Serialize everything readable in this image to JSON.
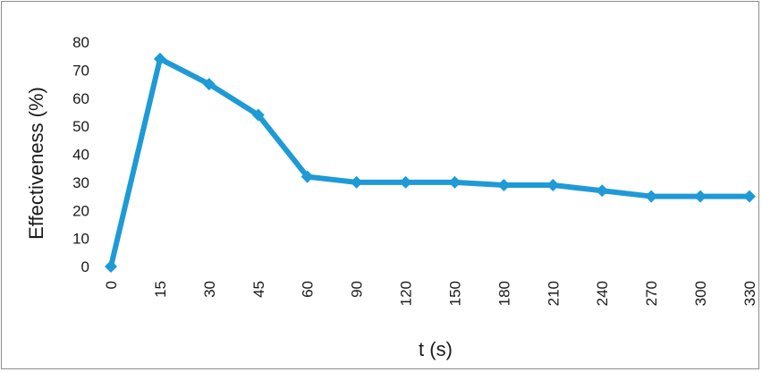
{
  "chart_data": {
    "type": "line",
    "title": "",
    "xlabel": "t (s)",
    "ylabel": "Effectiveness (%)",
    "categories": [
      "0",
      "15",
      "30",
      "45",
      "60",
      "90",
      "120",
      "150",
      "180",
      "210",
      "240",
      "270",
      "300",
      "330"
    ],
    "series": [
      {
        "values": [
          0,
          74,
          65,
          54,
          32,
          30,
          30,
          30,
          29,
          29,
          27,
          25,
          25,
          25
        ]
      }
    ],
    "y_ticks": [
      "0",
      "10",
      "20",
      "30",
      "40",
      "50",
      "60",
      "70",
      "80"
    ],
    "ylim": [
      0,
      80
    ],
    "x_axis_type": "category",
    "grid": false,
    "legend": "none",
    "colors": {
      "series": "#1e9ad6",
      "text": "#1a1a1a",
      "frame": "#8c8c8c"
    }
  }
}
